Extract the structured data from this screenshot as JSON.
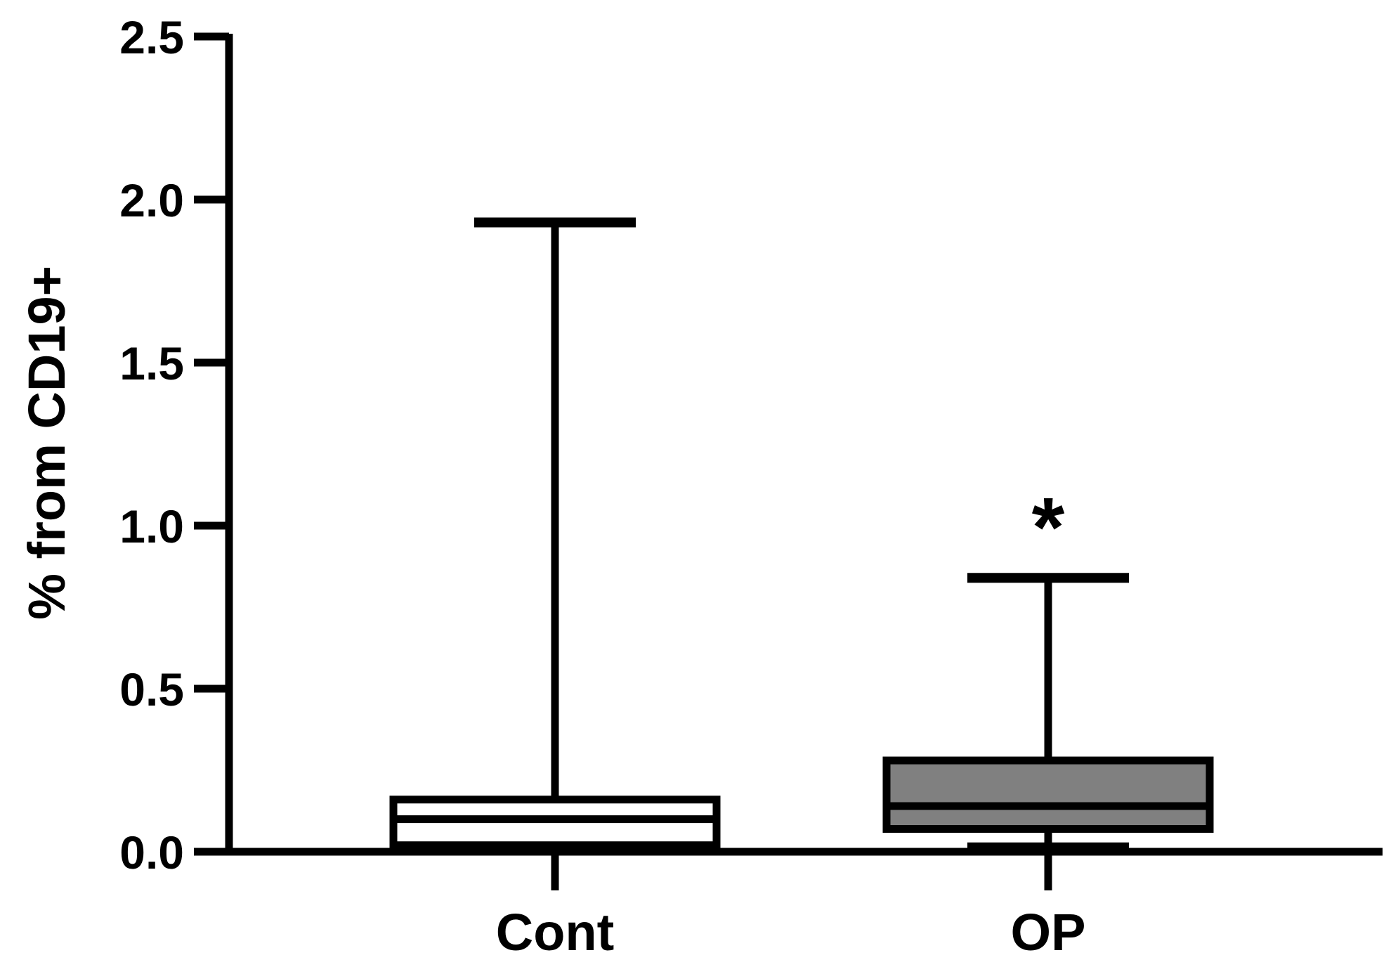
{
  "chart_data": {
    "type": "box",
    "title": "",
    "xlabel": "",
    "ylabel": "% from CD19+",
    "ylim": [
      0,
      2.5
    ],
    "yticks": [
      0.0,
      0.5,
      1.0,
      1.5,
      2.0,
      2.5
    ],
    "ytick_labels": [
      "0.0",
      "0.5",
      "1.0",
      "1.5",
      "2.0",
      "2.5"
    ],
    "grid": false,
    "legend": "none",
    "categories": [
      "Cont",
      "OP"
    ],
    "boxes": [
      {
        "name": "Cont",
        "min": 0.0,
        "q1": 0.02,
        "median": 0.1,
        "q3": 0.16,
        "max": 1.93,
        "fill": "#ffffff"
      },
      {
        "name": "OP",
        "min": 0.02,
        "q1": 0.07,
        "median": 0.14,
        "q3": 0.28,
        "max": 0.84,
        "fill": "#808080"
      }
    ],
    "annotations": [
      {
        "text": "*",
        "category": "OP",
        "y": 1.1
      }
    ]
  }
}
